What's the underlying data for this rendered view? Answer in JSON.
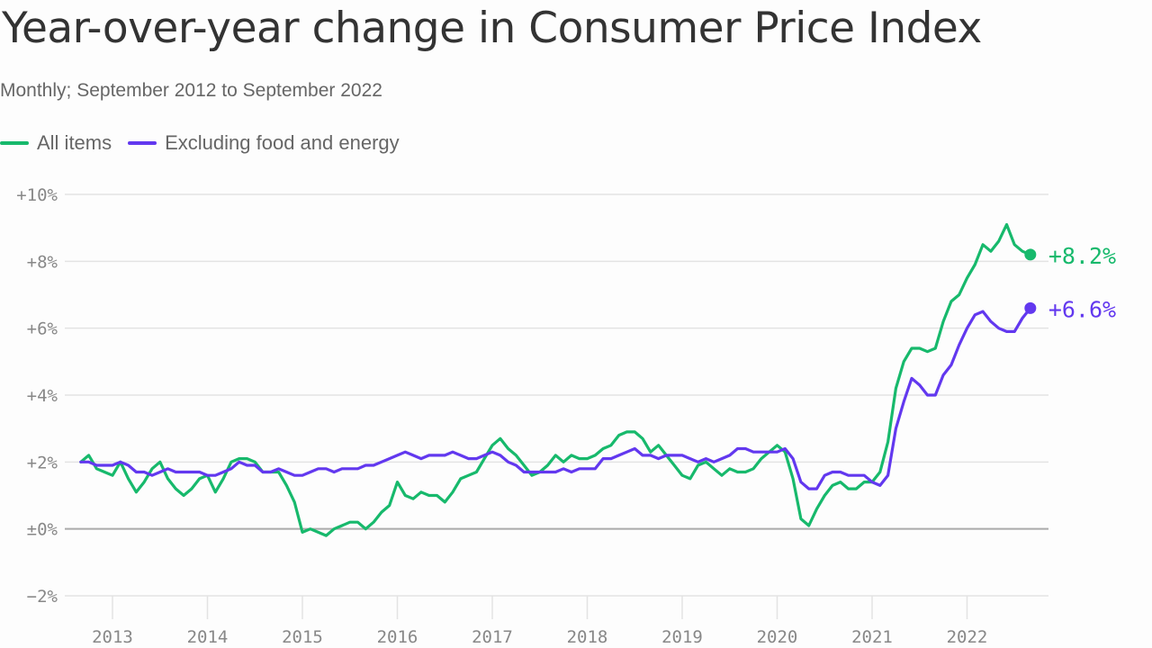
{
  "header": {
    "title": "Year-over-year change in Consumer Price Index",
    "subtitle": "Monthly; September 2012 to September 2022"
  },
  "legend": [
    {
      "label": "All items",
      "color": "#17b96c"
    },
    {
      "label": "Excluding food and energy",
      "color": "#6238ef"
    }
  ],
  "chart_data": {
    "type": "line",
    "title": "Year-over-year change in Consumer Price Index",
    "subtitle": "Monthly; September 2012 to September 2022",
    "xlabel": "",
    "ylabel": "",
    "x_start": "2012-09",
    "x_end": "2022-09",
    "x_ticks": [
      "2013",
      "2014",
      "2015",
      "2016",
      "2017",
      "2018",
      "2019",
      "2020",
      "2021",
      "2022"
    ],
    "y_ticks": [
      {
        "value": 10,
        "label": "+10%"
      },
      {
        "value": 8,
        "label": "+8%"
      },
      {
        "value": 6,
        "label": "+6%"
      },
      {
        "value": 4,
        "label": "+4%"
      },
      {
        "value": 2,
        "label": "+2%"
      },
      {
        "value": 0,
        "label": "±0%"
      },
      {
        "value": -2,
        "label": "−2%"
      }
    ],
    "ylim": [
      -2,
      10
    ],
    "grid": true,
    "legend_position": "top-left",
    "series": [
      {
        "name": "All items",
        "color": "#17b96c",
        "end_label": "+8.2%",
        "values": [
          2.0,
          2.2,
          1.8,
          1.7,
          1.6,
          2.0,
          1.5,
          1.1,
          1.4,
          1.8,
          2.0,
          1.5,
          1.2,
          1.0,
          1.2,
          1.5,
          1.6,
          1.1,
          1.5,
          2.0,
          2.1,
          2.1,
          2.0,
          1.7,
          1.7,
          1.7,
          1.3,
          0.8,
          -0.1,
          0.0,
          -0.1,
          -0.2,
          0.0,
          0.1,
          0.2,
          0.2,
          0.0,
          0.2,
          0.5,
          0.7,
          1.4,
          1.0,
          0.9,
          1.1,
          1.0,
          1.0,
          0.8,
          1.1,
          1.5,
          1.6,
          1.7,
          2.1,
          2.5,
          2.7,
          2.4,
          2.2,
          1.9,
          1.6,
          1.7,
          1.9,
          2.2,
          2.0,
          2.2,
          2.1,
          2.1,
          2.2,
          2.4,
          2.5,
          2.8,
          2.9,
          2.9,
          2.7,
          2.3,
          2.5,
          2.2,
          1.9,
          1.6,
          1.5,
          1.9,
          2.0,
          1.8,
          1.6,
          1.8,
          1.7,
          1.7,
          1.8,
          2.1,
          2.3,
          2.5,
          2.3,
          1.5,
          0.3,
          0.1,
          0.6,
          1.0,
          1.3,
          1.4,
          1.2,
          1.2,
          1.4,
          1.4,
          1.7,
          2.6,
          4.2,
          5.0,
          5.4,
          5.4,
          5.3,
          5.4,
          6.2,
          6.8,
          7.0,
          7.5,
          7.9,
          8.5,
          8.3,
          8.6,
          9.1,
          8.5,
          8.3,
          8.2
        ]
      },
      {
        "name": "Excluding food and energy",
        "color": "#6238ef",
        "end_label": "+6.6%",
        "values": [
          2.0,
          2.0,
          1.9,
          1.9,
          1.9,
          2.0,
          1.9,
          1.7,
          1.7,
          1.6,
          1.7,
          1.8,
          1.7,
          1.7,
          1.7,
          1.7,
          1.6,
          1.6,
          1.7,
          1.8,
          2.0,
          1.9,
          1.9,
          1.7,
          1.7,
          1.8,
          1.7,
          1.6,
          1.6,
          1.7,
          1.8,
          1.8,
          1.7,
          1.8,
          1.8,
          1.8,
          1.9,
          1.9,
          2.0,
          2.1,
          2.2,
          2.3,
          2.2,
          2.1,
          2.2,
          2.2,
          2.2,
          2.3,
          2.2,
          2.1,
          2.1,
          2.2,
          2.3,
          2.2,
          2.0,
          1.9,
          1.7,
          1.7,
          1.7,
          1.7,
          1.7,
          1.8,
          1.7,
          1.8,
          1.8,
          1.8,
          2.1,
          2.1,
          2.2,
          2.3,
          2.4,
          2.2,
          2.2,
          2.1,
          2.2,
          2.2,
          2.2,
          2.1,
          2.0,
          2.1,
          2.0,
          2.1,
          2.2,
          2.4,
          2.4,
          2.3,
          2.3,
          2.3,
          2.3,
          2.4,
          2.1,
          1.4,
          1.2,
          1.2,
          1.6,
          1.7,
          1.7,
          1.6,
          1.6,
          1.6,
          1.4,
          1.3,
          1.6,
          3.0,
          3.8,
          4.5,
          4.3,
          4.0,
          4.0,
          4.6,
          4.9,
          5.5,
          6.0,
          6.4,
          6.5,
          6.2,
          6.0,
          5.9,
          5.9,
          6.3,
          6.6
        ]
      }
    ]
  }
}
